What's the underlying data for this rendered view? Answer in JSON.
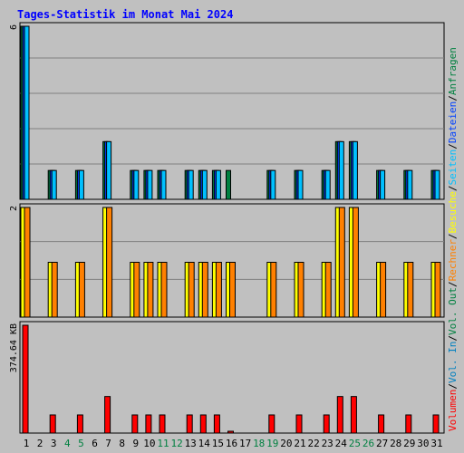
{
  "chart_data": {
    "type": "bar",
    "title": "Tages-Statistik im Monat Mai 2024",
    "categories": [
      "1",
      "2",
      "3",
      "4",
      "5",
      "6",
      "7",
      "8",
      "9",
      "10",
      "11",
      "12",
      "13",
      "14",
      "15",
      "16",
      "17",
      "18",
      "19",
      "20",
      "21",
      "22",
      "23",
      "24",
      "25",
      "26",
      "27",
      "28",
      "29",
      "30",
      "31"
    ],
    "weekend_days": [
      4,
      5,
      11,
      12,
      18,
      19,
      25,
      26
    ],
    "panels": [
      {
        "name": "requests-files",
        "ymax": 6,
        "ymax_label": "6",
        "series": [
          {
            "name": "Anfragen",
            "color": "#008040",
            "values": [
              6,
              0,
              1,
              0,
              1,
              0,
              2,
              0,
              1,
              1,
              1,
              0,
              1,
              1,
              1,
              1,
              0,
              0,
              1,
              0,
              1,
              0,
              1,
              2,
              2,
              0,
              1,
              0,
              1,
              0,
              1
            ]
          },
          {
            "name": "Dateien",
            "color": "#0040ff",
            "values": [
              6,
              0,
              1,
              0,
              1,
              0,
              2,
              0,
              1,
              1,
              1,
              0,
              1,
              1,
              1,
              0,
              0,
              0,
              1,
              0,
              1,
              0,
              1,
              2,
              2,
              0,
              1,
              0,
              1,
              0,
              1
            ]
          },
          {
            "name": "Seiten",
            "color": "#00c0ff",
            "values": [
              6,
              0,
              1,
              0,
              1,
              0,
              2,
              0,
              1,
              1,
              1,
              0,
              1,
              1,
              1,
              0,
              0,
              0,
              1,
              0,
              1,
              0,
              1,
              2,
              2,
              0,
              1,
              0,
              1,
              0,
              1
            ]
          }
        ]
      },
      {
        "name": "visits-hosts",
        "ymax": 2,
        "ymax_label": "2",
        "series": [
          {
            "name": "Besuche",
            "color": "#ffff00",
            "values": [
              2,
              0,
              1,
              0,
              1,
              0,
              2,
              0,
              1,
              1,
              1,
              0,
              1,
              1,
              1,
              1,
              0,
              0,
              1,
              0,
              1,
              0,
              1,
              2,
              2,
              0,
              1,
              0,
              1,
              0,
              1
            ]
          },
          {
            "name": "Rechner",
            "color": "#ff8000",
            "values": [
              2,
              0,
              1,
              0,
              1,
              0,
              2,
              0,
              1,
              1,
              1,
              0,
              1,
              1,
              1,
              1,
              0,
              0,
              1,
              0,
              1,
              0,
              1,
              2,
              2,
              0,
              1,
              0,
              1,
              0,
              1
            ]
          }
        ]
      },
      {
        "name": "volume",
        "ymax": 374.64,
        "ymax_label": "374.64 KB",
        "series": [
          {
            "name": "Volumen",
            "color": "#ff0000",
            "values": [
              374.64,
              0,
              63,
              0,
              63,
              0,
              127,
              0,
              63,
              63,
              63,
              0,
              63,
              63,
              63,
              4,
              0,
              0,
              63,
              0,
              63,
              0,
              63,
              127,
              127,
              0,
              63,
              0,
              63,
              0,
              63
            ]
          }
        ]
      }
    ],
    "right_legend": [
      {
        "text": "Volumen",
        "color": "#ff0000"
      },
      {
        "text": "/",
        "color": "#000000"
      },
      {
        "text": "Vol. In",
        "color": "#0080c0"
      },
      {
        "text": "/",
        "color": "#000000"
      },
      {
        "text": "Vol. Out",
        "color": "#008040"
      },
      {
        "text": "/",
        "color": "#000000"
      },
      {
        "text": "Rechner",
        "color": "#ff8000"
      },
      {
        "text": "/",
        "color": "#000000"
      },
      {
        "text": "Besuche",
        "color": "#ffff00"
      },
      {
        "text": "/",
        "color": "#000000"
      },
      {
        "text": "Seiten",
        "color": "#00c0ff"
      },
      {
        "text": "/",
        "color": "#000000"
      },
      {
        "text": "Dateien",
        "color": "#0040ff"
      },
      {
        "text": "/",
        "color": "#000000"
      },
      {
        "text": "Anfragen",
        "color": "#008040"
      }
    ],
    "colors": {
      "background": "#c0c0c0",
      "title": "#0000ff",
      "weekday_label": "#000000",
      "weekend_label": "#008040",
      "grid": "#808080"
    }
  }
}
